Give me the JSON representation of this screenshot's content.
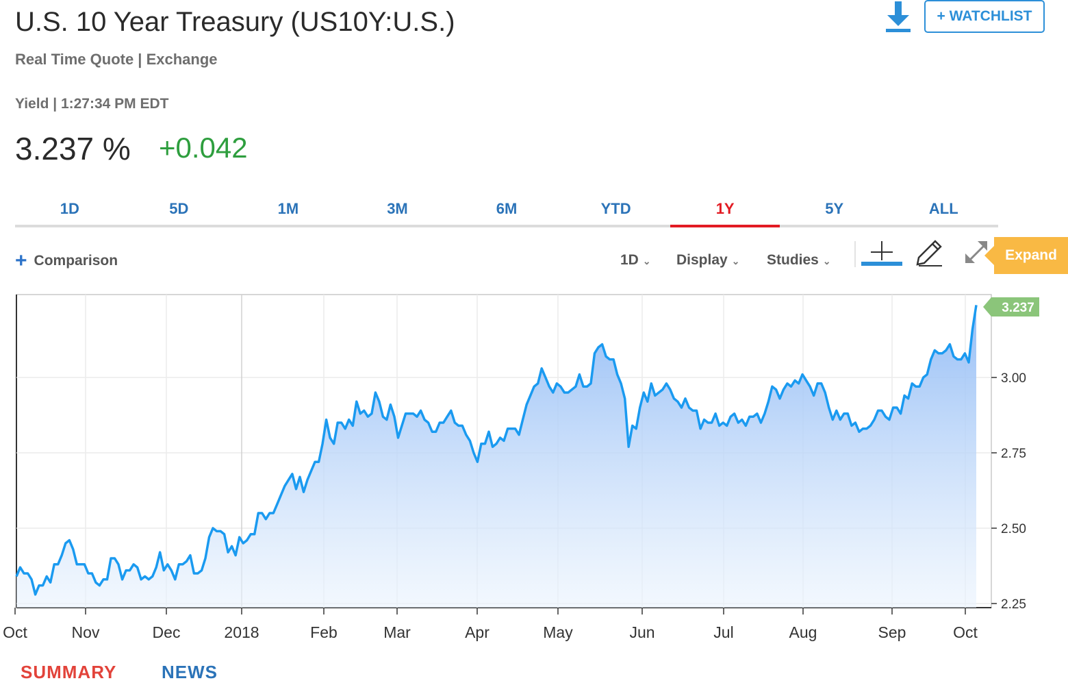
{
  "header": {
    "title": "U.S. 10 Year Treasury (US10Y:U.S.)",
    "subtitle": "Real Time Quote | Exchange",
    "yield_line": "Yield | 1:27:34 PM EDT",
    "price": "3.237 %",
    "change": "+0.042",
    "watchlist_label": "+ WATCHLIST",
    "download_icon": "download-icon"
  },
  "tabs": [
    {
      "label": "1D",
      "active": false
    },
    {
      "label": "5D",
      "active": false
    },
    {
      "label": "1M",
      "active": false
    },
    {
      "label": "3M",
      "active": false
    },
    {
      "label": "6M",
      "active": false
    },
    {
      "label": "YTD",
      "active": false
    },
    {
      "label": "1Y",
      "active": true
    },
    {
      "label": "5Y",
      "active": false
    },
    {
      "label": "ALL",
      "active": false
    }
  ],
  "toolbar": {
    "comparison_label": "Comparison",
    "interval_label": "1D",
    "display_label": "Display",
    "studies_label": "Studies",
    "expand_label": "Expand"
  },
  "bottom_tabs": {
    "summary": "SUMMARY",
    "news": "NEWS"
  },
  "colors": {
    "line": "#1a9af0",
    "positive": "#2e9e3e",
    "active_tab": "#e21b23",
    "tab": "#2b73b8",
    "last_badge": "#8bc57a",
    "expand": "#f9b944"
  },
  "chart_data": {
    "type": "area",
    "x_labels": [
      "Oct",
      "Nov",
      "Dec",
      "2018",
      "Feb",
      "Mar",
      "Apr",
      "May",
      "Jun",
      "Jul",
      "Aug",
      "Sep",
      "Oct"
    ],
    "y_ticks": [
      "3.00",
      "2.75",
      "2.50",
      "2.25"
    ],
    "ylim": [
      2.25,
      3.3
    ],
    "last_value": "3.237",
    "grid": true,
    "series": [
      {
        "values": [
          2.34,
          2.37,
          2.35,
          2.35,
          2.33,
          2.28,
          2.31,
          2.31,
          2.34,
          2.32,
          2.38,
          2.38,
          2.41,
          2.45,
          2.46,
          2.43,
          2.38,
          2.38,
          2.38,
          2.35,
          2.35,
          2.32,
          2.31,
          2.33,
          2.33,
          2.4,
          2.4,
          2.38,
          2.33,
          2.36,
          2.36,
          2.38,
          2.37,
          2.33,
          2.34,
          2.33,
          2.34,
          2.37,
          2.42,
          2.36,
          2.38,
          2.36,
          2.33,
          2.38,
          2.38,
          2.39,
          2.41,
          2.35,
          2.35,
          2.36,
          2.4,
          2.47,
          2.5,
          2.49,
          2.49,
          2.48,
          2.42,
          2.44,
          2.41,
          2.47,
          2.45,
          2.46,
          2.48,
          2.48,
          2.55,
          2.55,
          2.53,
          2.55,
          2.55,
          2.58,
          2.61,
          2.64,
          2.66,
          2.68,
          2.63,
          2.67,
          2.62,
          2.66,
          2.69,
          2.72,
          2.72,
          2.78,
          2.86,
          2.8,
          2.78,
          2.85,
          2.85,
          2.83,
          2.86,
          2.84,
          2.92,
          2.88,
          2.89,
          2.87,
          2.88,
          2.95,
          2.92,
          2.87,
          2.86,
          2.91,
          2.87,
          2.8,
          2.84,
          2.88,
          2.88,
          2.88,
          2.87,
          2.89,
          2.86,
          2.85,
          2.82,
          2.82,
          2.85,
          2.85,
          2.87,
          2.89,
          2.85,
          2.84,
          2.84,
          2.81,
          2.79,
          2.75,
          2.72,
          2.78,
          2.78,
          2.82,
          2.77,
          2.78,
          2.8,
          2.79,
          2.83,
          2.83,
          2.83,
          2.81,
          2.86,
          2.91,
          2.94,
          2.97,
          2.98,
          3.03,
          3.0,
          2.97,
          2.95,
          2.98,
          2.97,
          2.95,
          2.95,
          2.96,
          2.97,
          3.01,
          2.97,
          2.97,
          2.98,
          3.08,
          3.1,
          3.11,
          3.07,
          3.06,
          3.06,
          3.01,
          2.98,
          2.93,
          2.77,
          2.84,
          2.83,
          2.9,
          2.95,
          2.92,
          2.98,
          2.94,
          2.95,
          2.96,
          2.98,
          2.96,
          2.93,
          2.92,
          2.9,
          2.93,
          2.9,
          2.89,
          2.89,
          2.83,
          2.86,
          2.85,
          2.85,
          2.88,
          2.84,
          2.85,
          2.84,
          2.87,
          2.88,
          2.85,
          2.86,
          2.84,
          2.87,
          2.87,
          2.88,
          2.85,
          2.88,
          2.92,
          2.97,
          2.96,
          2.93,
          2.96,
          2.98,
          2.97,
          2.99,
          2.98,
          3.01,
          2.99,
          2.97,
          2.94,
          2.98,
          2.98,
          2.95,
          2.9,
          2.86,
          2.89,
          2.86,
          2.88,
          2.88,
          2.84,
          2.85,
          2.82,
          2.83,
          2.83,
          2.84,
          2.86,
          2.89,
          2.89,
          2.87,
          2.86,
          2.9,
          2.9,
          2.88,
          2.94,
          2.93,
          2.98,
          2.97,
          2.97,
          3.0,
          3.01,
          3.06,
          3.09,
          3.08,
          3.08,
          3.09,
          3.11,
          3.07,
          3.06,
          3.06,
          3.08,
          3.05,
          3.16,
          3.24
        ]
      }
    ]
  }
}
